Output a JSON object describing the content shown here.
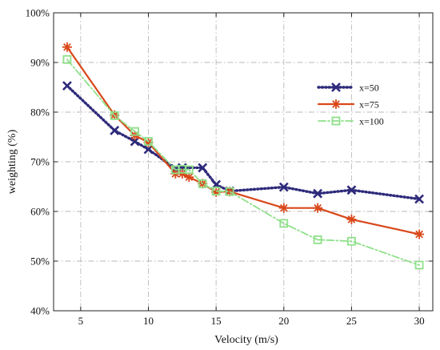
{
  "chart_data": {
    "type": "line",
    "title": "",
    "xlabel": "Velocity (m/s)",
    "ylabel": "weighting (%)",
    "xlim": [
      3,
      31
    ],
    "ylim": [
      40,
      100
    ],
    "xticks": [
      5,
      10,
      15,
      20,
      25,
      30
    ],
    "xtick_labels": [
      "5",
      "10",
      "15",
      "20",
      "25",
      "30"
    ],
    "yticks": [
      40,
      50,
      60,
      70,
      80,
      90,
      100
    ],
    "ytick_labels": [
      "40%",
      "50%",
      "60%",
      "70%",
      "80%",
      "90%",
      "100%"
    ],
    "grid": true,
    "legend_position": "right",
    "series": [
      {
        "name": "x=50",
        "color": "#2e2a7a",
        "line_style": "dotted",
        "marker": "x",
        "x": [
          4,
          7.5,
          9,
          10,
          12,
          12.5,
          14,
          15,
          16,
          20,
          22.5,
          25,
          30
        ],
        "y": [
          85.3,
          76.3,
          74.1,
          72.5,
          68.6,
          68.8,
          68.8,
          65.4,
          64.1,
          64.9,
          63.6,
          64.3,
          62.5
        ]
      },
      {
        "name": "x=75",
        "color": "#d9481a",
        "line_style": "solid",
        "marker": "asterisk",
        "x": [
          4,
          7.5,
          9,
          10,
          12,
          12.5,
          13,
          14,
          15,
          16,
          20,
          22.5,
          25,
          30
        ],
        "y": [
          93.1,
          79.4,
          75.3,
          73.9,
          67.6,
          67.6,
          66.9,
          65.6,
          63.9,
          64.0,
          60.7,
          60.7,
          58.4,
          55.4
        ]
      },
      {
        "name": "x=100",
        "color": "#8fe08a",
        "line_style": "dashdot",
        "marker": "square",
        "x": [
          4,
          7.5,
          9,
          10,
          12,
          12.5,
          13,
          14,
          15,
          16,
          20,
          22.5,
          25,
          30
        ],
        "y": [
          90.6,
          79.3,
          76.1,
          74.1,
          68.4,
          68.5,
          68.4,
          65.6,
          64.1,
          64.0,
          57.6,
          54.3,
          54.0,
          49.2
        ]
      }
    ]
  }
}
